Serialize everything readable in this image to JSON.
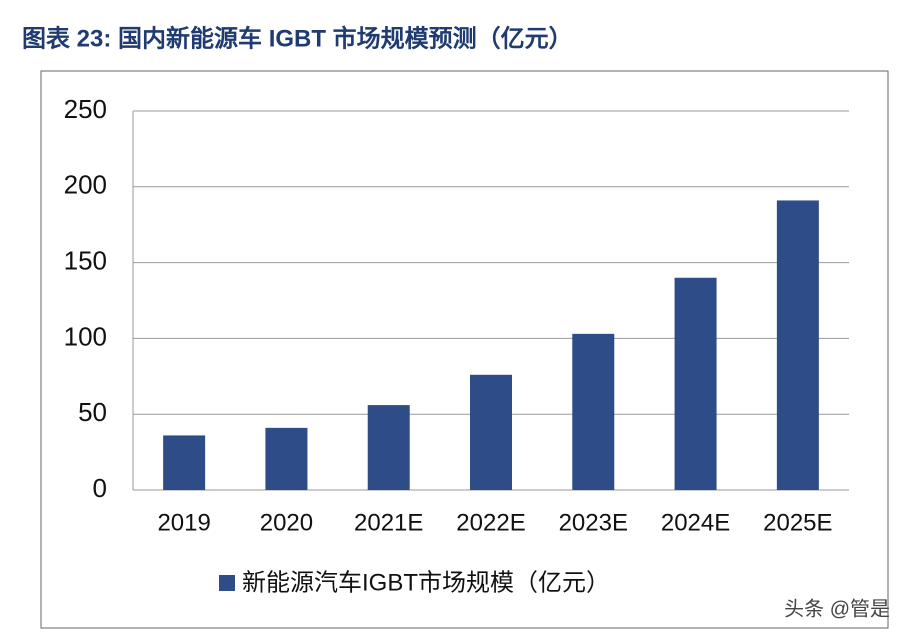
{
  "chart_data": {
    "type": "bar",
    "title": "图表 23:  国内新能源车 IGBT 市场规模预测（亿元）",
    "categories": [
      "2019",
      "2020",
      "2021E",
      "2022E",
      "2023E",
      "2024E",
      "2025E"
    ],
    "series": [
      {
        "name": "新能源汽车IGBT市场规模（亿元）",
        "color": "#2e4c88",
        "values": [
          36,
          41,
          56,
          76,
          103,
          140,
          191
        ]
      }
    ],
    "ylim": [
      0,
      250
    ],
    "yticks": [
      0,
      50,
      100,
      150,
      200,
      250
    ],
    "grid": true,
    "legend": "bottom",
    "watermark": "头条 @管是"
  }
}
